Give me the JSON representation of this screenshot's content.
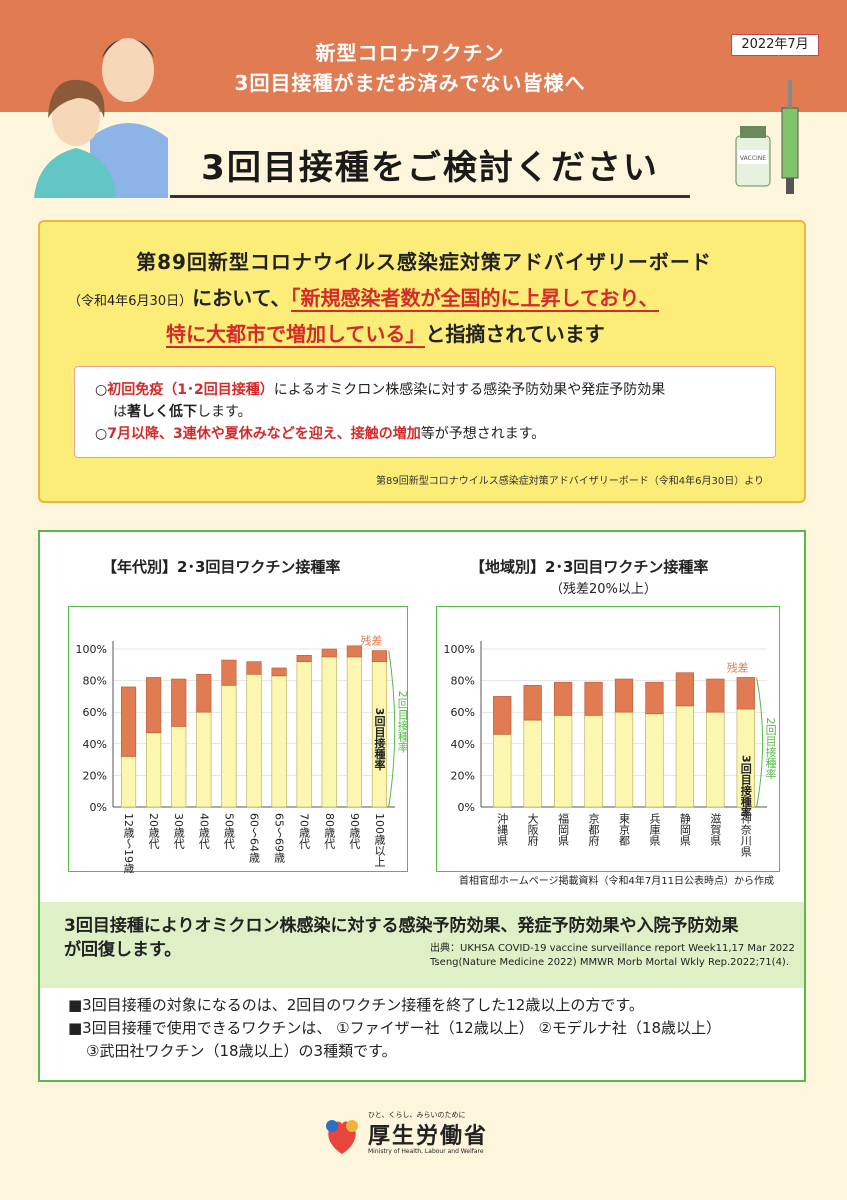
{
  "header": {
    "date": "2022年7月",
    "subtitle_line1": "新型コロナワクチン",
    "subtitle_line2": "3回目接種がまだお済みでない皆様へ",
    "title": "3回目接種をご検討ください"
  },
  "notice": {
    "heading": "第89回新型コロナウイルス感染症対策アドバイザリーボード",
    "date_paren": "（令和4年6月30日）",
    "line2_mid": "において、",
    "quote1": "「新規感染者数が全国的に上昇しており、",
    "quote2": "特に大都市で増加している」",
    "line3_end": "と指摘されています",
    "bullet1_a": "○",
    "bullet1_red": "初回免疫（1･2回目接種）",
    "bullet1_b": "によるオミクロン株感染に対する感染予防効果や発症予防効果",
    "bullet1_c": "は",
    "bullet1_bold": "著しく低下",
    "bullet1_d": "します。",
    "bullet2_a": "○",
    "bullet2_red": "7月以降、3連休や夏休みなどを迎え、接触の増加",
    "bullet2_b": "等が予想されます。",
    "source": "第89回新型コロナウイルス感染症対策アドバイザリーボード（令和4年6月30日）より"
  },
  "chart_data": [
    {
      "type": "bar",
      "title": "【年代別】2･3回目ワクチン接種率",
      "categories": [
        "12歳～19歳",
        "20歳代",
        "30歳代",
        "40歳代",
        "50歳代",
        "60～64歳",
        "65～69歳",
        "70歳代",
        "80歳代",
        "90歳代",
        "100歳以上"
      ],
      "series": [
        {
          "name": "3回目接種率",
          "values": [
            32,
            47,
            51,
            60,
            77,
            84,
            83,
            92,
            95,
            95,
            92
          ]
        },
        {
          "name": "残差",
          "values": [
            44,
            35,
            30,
            24,
            16,
            8,
            5,
            4,
            5,
            7,
            7
          ]
        }
      ],
      "stacked": true,
      "ylim": [
        0,
        100
      ],
      "yticks": [
        "0%",
        "20%",
        "40%",
        "60%",
        "80%",
        "100%"
      ],
      "annotation_gap": "残差",
      "annotation_3rd": "3回目接種率",
      "annotation_2nd": "2回目接種率"
    },
    {
      "type": "bar",
      "title": "【地域別】2･3回目ワクチン接種率",
      "subtitle": "（残差20%以上）",
      "categories": [
        "沖縄県",
        "大阪府",
        "福岡県",
        "京都府",
        "東京都",
        "兵庫県",
        "静岡県",
        "滋賀県",
        "神奈川県"
      ],
      "series": [
        {
          "name": "3回目接種率",
          "values": [
            46,
            55,
            58,
            58,
            60,
            59,
            64,
            60,
            62
          ]
        },
        {
          "name": "残差",
          "values": [
            24,
            22,
            21,
            21,
            21,
            20,
            21,
            21,
            20
          ]
        }
      ],
      "stacked": true,
      "ylim": [
        0,
        100
      ],
      "yticks": [
        "0%",
        "20%",
        "40%",
        "60%",
        "80%",
        "100%"
      ],
      "annotation_gap": "残差",
      "annotation_3rd": "3回目接種率",
      "annotation_2nd": "2回目接種率"
    }
  ],
  "chart_source": "首相官邸ホームページ掲載資料（令和4年7月11日公表時点）から作成",
  "effect": {
    "text_line1": "3回目接種によりオミクロン株感染に対する感染予防効果、発症予防効果や入院予防効果",
    "text_line2": "が回復します。",
    "source_line1": "出典：UKHSA COVID-19 vaccine surveillance report Week11,17 Mar 2022",
    "source_line2": "Tseng(Nature Medicine 2022) MMWR Morb Mortal Wkly Rep.2022;71(4)."
  },
  "notes": {
    "line1": "■3回目接種の対象になるのは、2回目のワクチン接種を終了した12歳以上の方です。",
    "line2": "■3回目接種で使用できるワクチンは、 ①ファイザー社（12歳以上） ②モデルナ社（18歳以上）",
    "line3": "③武田社ワクチン（18歳以上）の3種類です。"
  },
  "ministry": {
    "tagline": "ひと、くらし、みらいのために",
    "name": "厚生労働省",
    "english": "Ministry of Health, Labour and Welfare"
  },
  "colors": {
    "header": "#e07b52",
    "third_dose": "#fbf6b0",
    "gap": "#e07b52",
    "green": "#58b94a",
    "red": "#d42a2a"
  }
}
